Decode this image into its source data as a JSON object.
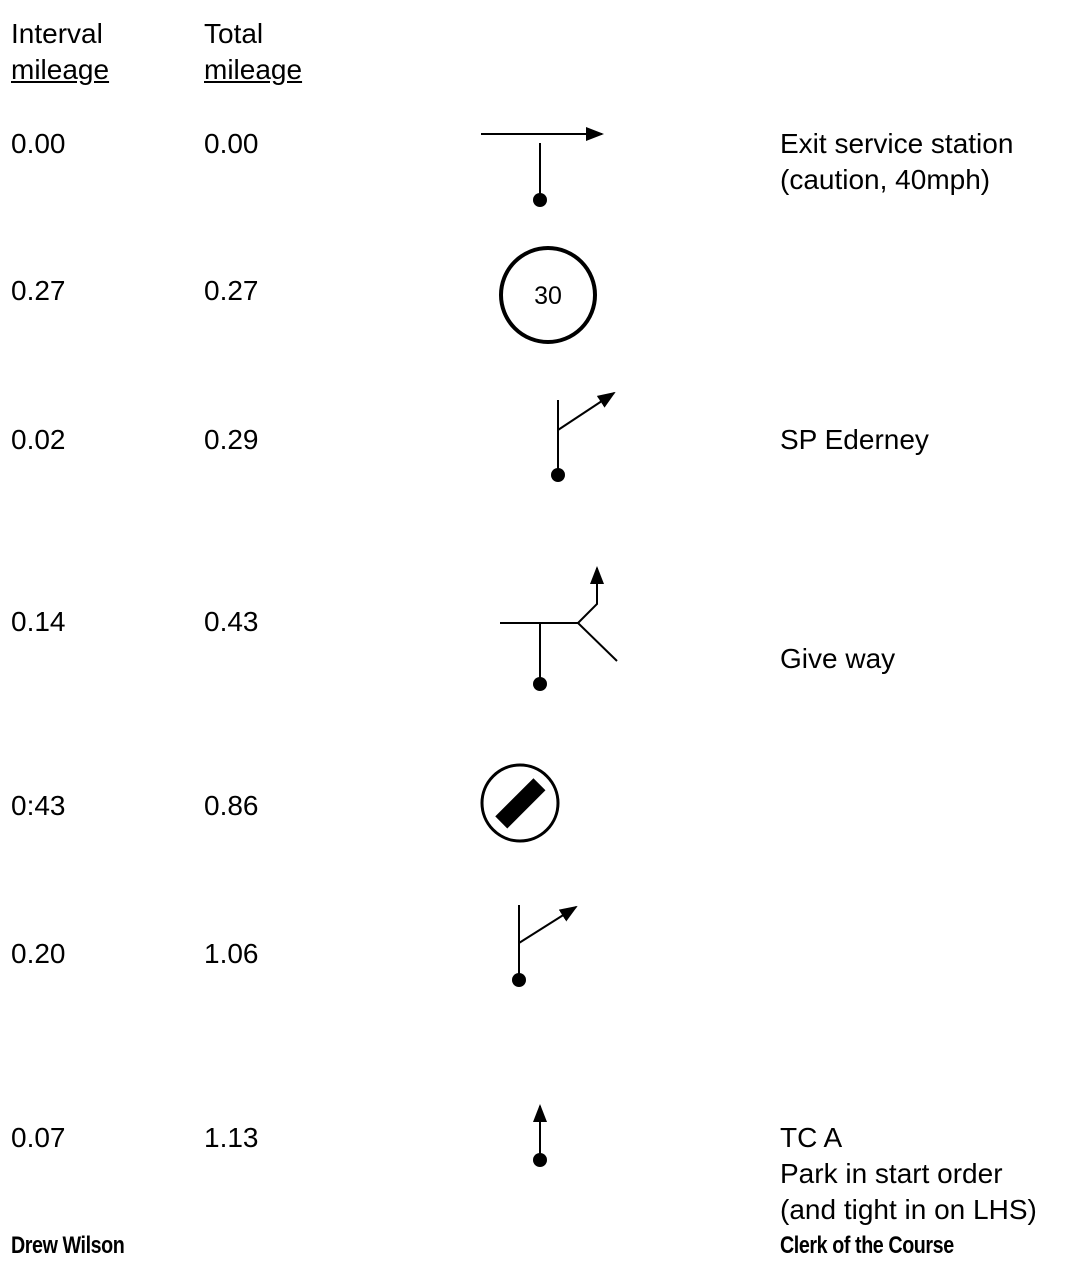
{
  "header": {
    "interval_line1": "Interval",
    "interval_line2": "mileage",
    "total_line1": "Total",
    "total_line2": "mileage"
  },
  "rows": [
    {
      "interval": "0.00",
      "total": "0.00",
      "instruction": [
        "Exit service station",
        "(caution, 40mph)"
      ],
      "symbol": "right-turn-arrow"
    },
    {
      "interval": "0.27",
      "total": "0.27",
      "instruction": [],
      "symbol": "speed-limit-sign",
      "sign_text": "30"
    },
    {
      "interval": "0.02",
      "total": "0.29",
      "instruction": [
        "SP Ederney"
      ],
      "symbol": "bear-right-arrow"
    },
    {
      "interval": "0.14",
      "total": "0.43",
      "instruction": [
        "Give way"
      ],
      "symbol": "junction-arrow"
    },
    {
      "interval": "0:43",
      "total": "0.86",
      "instruction": [],
      "symbol": "national-speed-limit-sign"
    },
    {
      "interval": "0.20",
      "total": "1.06",
      "instruction": [],
      "symbol": "bear-right-arrow"
    },
    {
      "interval": "0.07",
      "total": "1.13",
      "instruction": [
        "TC A",
        "Park in start order",
        "(and tight in on LHS)"
      ],
      "symbol": "straight-arrow"
    }
  ],
  "footer": {
    "left": "Drew Wilson",
    "right": "Clerk of the Course"
  }
}
